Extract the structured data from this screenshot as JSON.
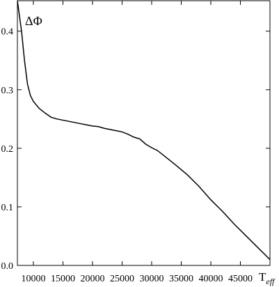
{
  "chart_data": {
    "type": "line",
    "ylabel": "ΔΦ",
    "xlabel": "T",
    "xlabel_sub": "eff",
    "x": [
      7300,
      8000,
      8500,
      9000,
      9500,
      10000,
      11000,
      12000,
      13000,
      14000,
      16000,
      18000,
      20000,
      21000,
      22000,
      24000,
      25000,
      26000,
      27000,
      28000,
      29000,
      30000,
      31000,
      32000,
      34000,
      36000,
      38000,
      40000,
      42000,
      44000,
      46000,
      48000,
      50000
    ],
    "series": [
      {
        "color": "#000000",
        "values": [
          0.452,
          0.4,
          0.35,
          0.31,
          0.29,
          0.28,
          0.268,
          0.26,
          0.253,
          0.25,
          0.246,
          0.242,
          0.238,
          0.237,
          0.234,
          0.23,
          0.228,
          0.224,
          0.219,
          0.216,
          0.207,
          0.201,
          0.196,
          0.188,
          0.172,
          0.155,
          0.135,
          0.112,
          0.092,
          0.07,
          0.05,
          0.03,
          0.01
        ]
      }
    ],
    "xlim": [
      7300,
      50000
    ],
    "ylim": [
      0,
      0.452
    ],
    "xticks": [
      10000,
      15000,
      20000,
      25000,
      30000,
      35000,
      40000,
      45000
    ],
    "yticks": [
      {
        "value": 0,
        "label": "0.0"
      },
      0.1,
      0.2,
      0.3,
      0.4
    ]
  }
}
